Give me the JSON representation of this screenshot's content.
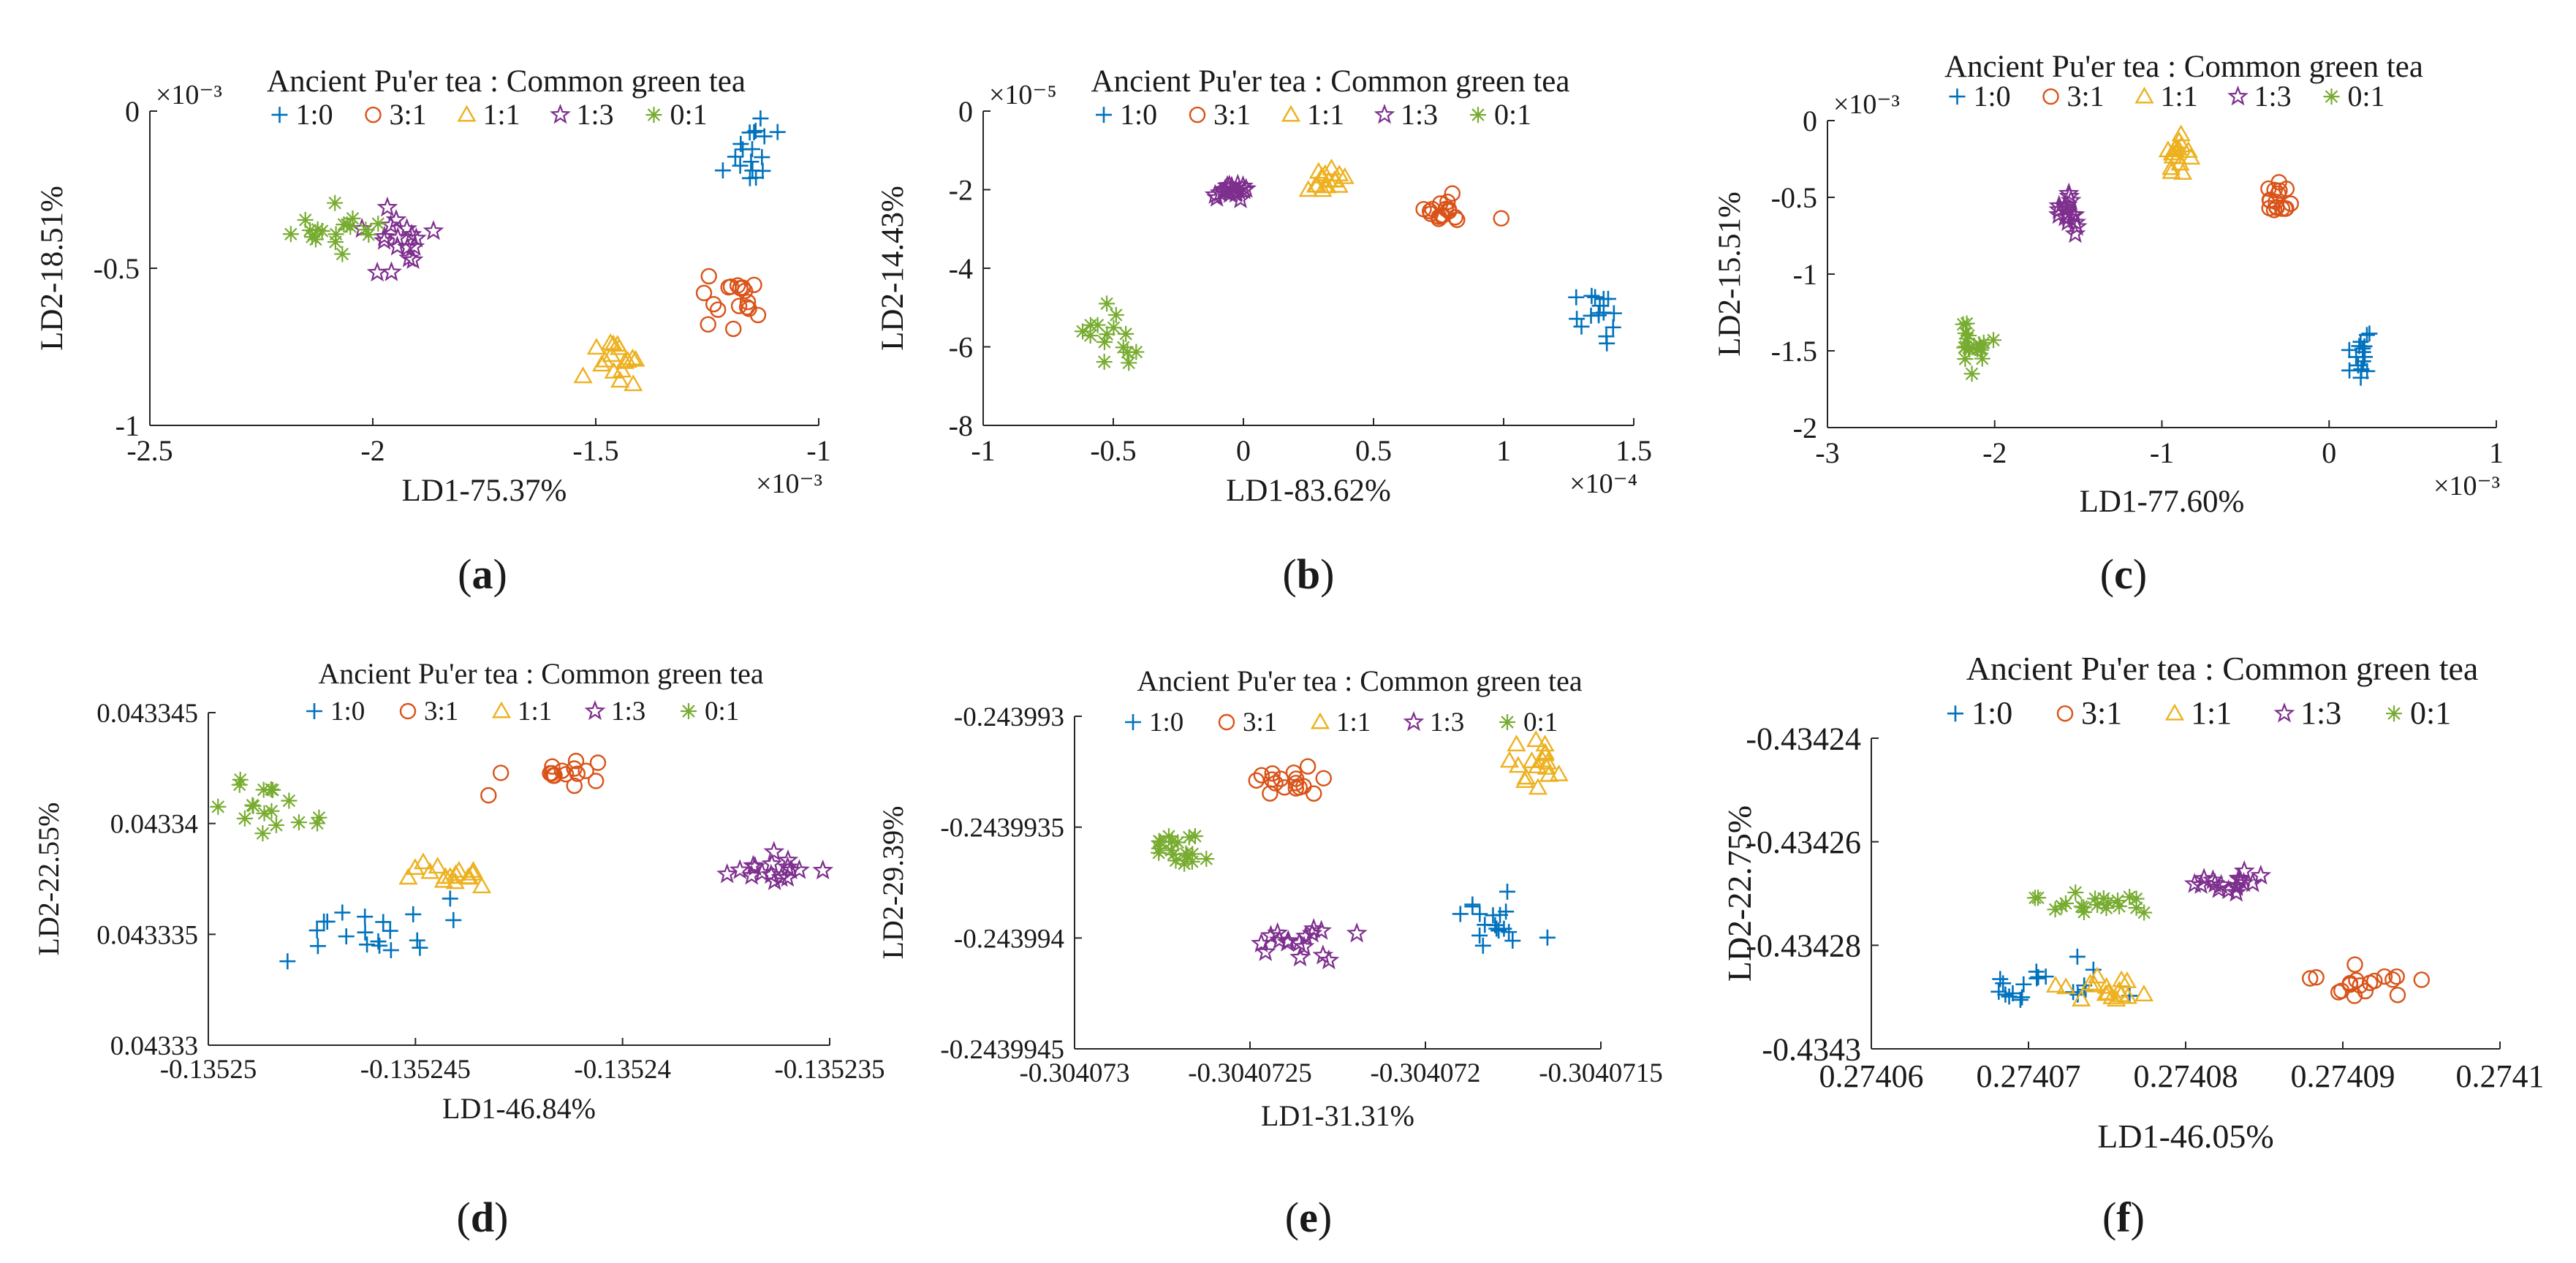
{
  "figure": {
    "legend_title": "Ancient Pu'er tea : Common green tea",
    "series_names": [
      "1:0",
      "3:1",
      "1:1",
      "1:3",
      "0:1"
    ],
    "series_colors": [
      "#0072BD",
      "#D95319",
      "#EDB120",
      "#7E2F8E",
      "#77AC30"
    ],
    "series_markers": [
      "plus",
      "circle",
      "triangle",
      "pentagram",
      "asterisk"
    ]
  },
  "chart_data": [
    {
      "type": "scatter",
      "panel_label": "(a)",
      "xlabel": "LD1-75.37%",
      "ylabel": "LD2-18.51%",
      "title": "Ancient Pu'er tea : Common green tea",
      "x_exponent": "×10⁻³",
      "y_exponent": "×10⁻³",
      "xlim": [
        -2.5,
        -1.0
      ],
      "ylim": [
        -1.0,
        0.0
      ],
      "xticks": [
        -2.5,
        -2,
        -1.5,
        -1
      ],
      "xtick_labels": [
        "-2.5",
        "-2",
        "-1.5",
        "-1"
      ],
      "yticks": [
        -1,
        -0.5,
        0
      ],
      "ytick_labels": [
        "-1",
        "-0.5",
        "0"
      ],
      "series": [
        {
          "name": "1:0",
          "clusters": [
            {
              "cx": -1.14,
              "cy": -0.13,
              "sx": 0.04,
              "sy": 0.05,
              "n": 18
            }
          ]
        },
        {
          "name": "3:1",
          "clusters": [
            {
              "cx": -1.2,
              "cy": -0.6,
              "sx": 0.04,
              "sy": 0.04,
              "n": 18
            }
          ]
        },
        {
          "name": "1:1",
          "clusters": [
            {
              "cx": -1.47,
              "cy": -0.78,
              "sx": 0.04,
              "sy": 0.04,
              "n": 17
            }
          ]
        },
        {
          "name": "1:3",
          "clusters": [
            {
              "cx": -1.95,
              "cy": -0.42,
              "sx": 0.05,
              "sy": 0.06,
              "n": 18
            }
          ]
        },
        {
          "name": "0:1",
          "clusters": [
            {
              "cx": -2.11,
              "cy": -0.37,
              "sx": 0.05,
              "sy": 0.03,
              "n": 18
            }
          ]
        }
      ]
    },
    {
      "type": "scatter",
      "panel_label": "(b)",
      "xlabel": "LD1-83.62%",
      "ylabel": "LD2-14.43%",
      "title": "Ancient Pu'er tea : Common green tea",
      "x_exponent": "×10⁻⁴",
      "y_exponent": "×10⁻⁵",
      "xlim": [
        -1.0,
        1.5
      ],
      "ylim": [
        -8.0,
        0.0
      ],
      "xticks": [
        -1,
        -0.5,
        0,
        0.5,
        1,
        1.5
      ],
      "xtick_labels": [
        "-1",
        "-0.5",
        "0",
        "0.5",
        "1",
        "1.5"
      ],
      "yticks": [
        -8,
        -6,
        -4,
        -2,
        0
      ],
      "ytick_labels": [
        "-8",
        "-6",
        "-4",
        "-2",
        "0"
      ],
      "series": [
        {
          "name": "1:0",
          "clusters": [
            {
              "cx": 1.34,
              "cy": -5.2,
              "sx": 0.05,
              "sy": 0.35,
              "n": 16
            }
          ]
        },
        {
          "name": "3:1",
          "clusters": [
            {
              "cx": 0.79,
              "cy": -2.55,
              "sx": 0.05,
              "sy": 0.18,
              "n": 17
            }
          ]
        },
        {
          "name": "1:1",
          "clusters": [
            {
              "cx": 0.33,
              "cy": -1.8,
              "sx": 0.04,
              "sy": 0.15,
              "n": 16
            }
          ]
        },
        {
          "name": "1:3",
          "clusters": [
            {
              "cx": -0.05,
              "cy": -2.05,
              "sx": 0.04,
              "sy": 0.12,
              "n": 18
            }
          ]
        },
        {
          "name": "0:1",
          "clusters": [
            {
              "cx": -0.52,
              "cy": -5.7,
              "sx": 0.07,
              "sy": 0.4,
              "n": 15
            }
          ]
        }
      ]
    },
    {
      "type": "scatter",
      "panel_label": "(c)",
      "xlabel": "LD1-77.60%",
      "ylabel": "LD2-15.51%",
      "title": "Ancient Pu'er tea : Common green tea",
      "x_exponent": "×10⁻³",
      "y_exponent": "×10⁻³",
      "xlim": [
        -3.0,
        1.0
      ],
      "ylim": [
        -2.0,
        0.0
      ],
      "xticks": [
        -3,
        -2,
        -1,
        0,
        1
      ],
      "xtick_labels": [
        "-3",
        "-2",
        "-1",
        "0",
        "1"
      ],
      "yticks": [
        -2,
        -1.5,
        -1,
        -0.5,
        0
      ],
      "ytick_labels": [
        "-2",
        "-1.5",
        "-1",
        "-0.5",
        "0"
      ],
      "series": [
        {
          "name": "1:0",
          "clusters": [
            {
              "cx": 0.2,
              "cy": -1.55,
              "sx": 0.06,
              "sy": 0.07,
              "n": 16
            }
          ]
        },
        {
          "name": "3:1",
          "clusters": [
            {
              "cx": -0.32,
              "cy": -0.52,
              "sx": 0.05,
              "sy": 0.06,
              "n": 17
            }
          ]
        },
        {
          "name": "1:1",
          "clusters": [
            {
              "cx": -0.9,
              "cy": -0.22,
              "sx": 0.04,
              "sy": 0.06,
              "n": 17
            }
          ]
        },
        {
          "name": "1:3",
          "clusters": [
            {
              "cx": -1.55,
              "cy": -0.6,
              "sx": 0.03,
              "sy": 0.06,
              "n": 18
            }
          ]
        },
        {
          "name": "0:1",
          "clusters": [
            {
              "cx": -2.12,
              "cy": -1.48,
              "sx": 0.05,
              "sy": 0.07,
              "n": 18
            }
          ]
        }
      ]
    },
    {
      "type": "scatter",
      "panel_label": "(d)",
      "xlabel": "LD1-46.84%",
      "ylabel": "LD2-22.55%",
      "title": "Ancient Pu'er tea : Common green tea",
      "x_exponent": "",
      "y_exponent": "",
      "xlim": [
        -0.13525,
        -0.135235
      ],
      "ylim": [
        0.04333,
        0.043345
      ],
      "xticks": [
        -0.13525,
        -0.135245,
        -0.13524,
        -0.135235
      ],
      "xtick_labels": [
        "-0.13525",
        "-0.135245",
        "-0.13524",
        "-0.135235"
      ],
      "yticks": [
        0.04333,
        0.043335,
        0.04334,
        0.043345
      ],
      "ytick_labels": [
        "0.04333",
        "0.043335",
        "0.04334",
        "0.043345"
      ],
      "series": [
        {
          "name": "1:0",
          "clusters": [
            {
              "cx": -0.135246,
              "cy": 0.0433351,
              "sx": 1.2e-06,
              "sy": 7e-07,
              "n": 20
            }
          ]
        },
        {
          "name": "3:1",
          "clusters": [
            {
              "cx": -0.1352415,
              "cy": 0.0433422,
              "sx": 7e-07,
              "sy": 4e-07,
              "n": 17
            }
          ]
        },
        {
          "name": "1:1",
          "clusters": [
            {
              "cx": -0.1352443,
              "cy": 0.0433377,
              "sx": 5e-07,
              "sy": 3e-07,
              "n": 16
            }
          ]
        },
        {
          "name": "1:3",
          "clusters": [
            {
              "cx": -0.1352365,
              "cy": 0.0433381,
              "sx": 5e-07,
              "sy": 4e-07,
              "n": 17
            }
          ]
        },
        {
          "name": "0:1",
          "clusters": [
            {
              "cx": -0.1352485,
              "cy": 0.0433408,
              "sx": 6e-07,
              "sy": 7e-07,
              "n": 17
            }
          ]
        }
      ]
    },
    {
      "type": "scatter",
      "panel_label": "(e)",
      "xlabel": "LD1-31.31%",
      "ylabel": "LD2-29.39%",
      "title": "Ancient Pu'er tea : Common green tea",
      "x_exponent": "",
      "y_exponent": "",
      "xlim": [
        -0.304073,
        -0.3040715
      ],
      "ylim": [
        -0.2439945,
        -0.243993
      ],
      "xticks": [
        -0.304073,
        -0.3040725,
        -0.304072,
        -0.3040715
      ],
      "xtick_labels": [
        "-0.304073",
        "-0.3040725",
        "-0.304072",
        "-0.3040715"
      ],
      "yticks": [
        -0.2439945,
        -0.243994,
        -0.2439935,
        -0.243993
      ],
      "ytick_labels": [
        "-0.2439945",
        "-0.243994",
        "-0.2439935",
        "-0.243993"
      ],
      "series": [
        {
          "name": "1:0",
          "clusters": [
            {
              "cx": -0.3040718,
              "cy": -0.2439939,
              "sx": 5e-08,
              "sy": 6e-08,
              "n": 18
            }
          ]
        },
        {
          "name": "3:1",
          "clusters": [
            {
              "cx": -0.3040724,
              "cy": -0.2439933,
              "sx": 7e-08,
              "sy": 4e-08,
              "n": 17
            }
          ]
        },
        {
          "name": "1:1",
          "clusters": [
            {
              "cx": -0.3040717,
              "cy": -0.2439932,
              "sx": 4e-08,
              "sy": 5e-08,
              "n": 17
            }
          ]
        },
        {
          "name": "1:3",
          "clusters": [
            {
              "cx": -0.3040724,
              "cy": -0.243994,
              "sx": 6e-08,
              "sy": 4e-08,
              "n": 17
            }
          ]
        },
        {
          "name": "0:1",
          "clusters": [
            {
              "cx": -0.3040727,
              "cy": -0.2439936,
              "sx": 4e-08,
              "sy": 4e-08,
              "n": 18
            }
          ]
        }
      ]
    },
    {
      "type": "scatter",
      "panel_label": "(f)",
      "xlabel": "LD1-46.05%",
      "ylabel": "LD2-22.75%",
      "title": "Ancient Pu'er tea : Common green tea",
      "x_exponent": "",
      "y_exponent": "",
      "xlim": [
        0.27406,
        0.2741
      ],
      "ylim": [
        -0.4343,
        -0.43424
      ],
      "xticks": [
        0.27406,
        0.27407,
        0.27408,
        0.27409,
        0.2741
      ],
      "xtick_labels": [
        "0.27406",
        "0.27407",
        "0.27408",
        "0.27409",
        "0.2741"
      ],
      "yticks": [
        -0.4343,
        -0.43428,
        -0.43426,
        -0.43424
      ],
      "ytick_labels": [
        "-0.4343",
        "-0.43428",
        "-0.43426",
        "-0.43424"
      ],
      "series": [
        {
          "name": "1:0",
          "clusters": [
            {
              "cx": 0.274071,
              "cy": -0.434287,
              "sx": 2.8e-06,
              "sy": 1.8e-06,
              "n": 20
            }
          ]
        },
        {
          "name": "3:1",
          "clusters": [
            {
              "cx": 0.274092,
              "cy": -0.434287,
              "sx": 2e-06,
              "sy": 1.8e-06,
              "n": 18
            }
          ]
        },
        {
          "name": "1:1",
          "clusters": [
            {
              "cx": 0.274075,
              "cy": -0.434288,
              "sx": 2e-06,
              "sy": 1.5e-06,
              "n": 17
            }
          ]
        },
        {
          "name": "1:3",
          "clusters": [
            {
              "cx": 0.274083,
              "cy": -0.434268,
              "sx": 1.2e-06,
              "sy": 1e-06,
              "n": 17
            }
          ]
        },
        {
          "name": "0:1",
          "clusters": [
            {
              "cx": 0.274074,
              "cy": -0.434272,
              "sx": 2.5e-06,
              "sy": 1.2e-06,
              "n": 20
            }
          ]
        }
      ]
    }
  ]
}
